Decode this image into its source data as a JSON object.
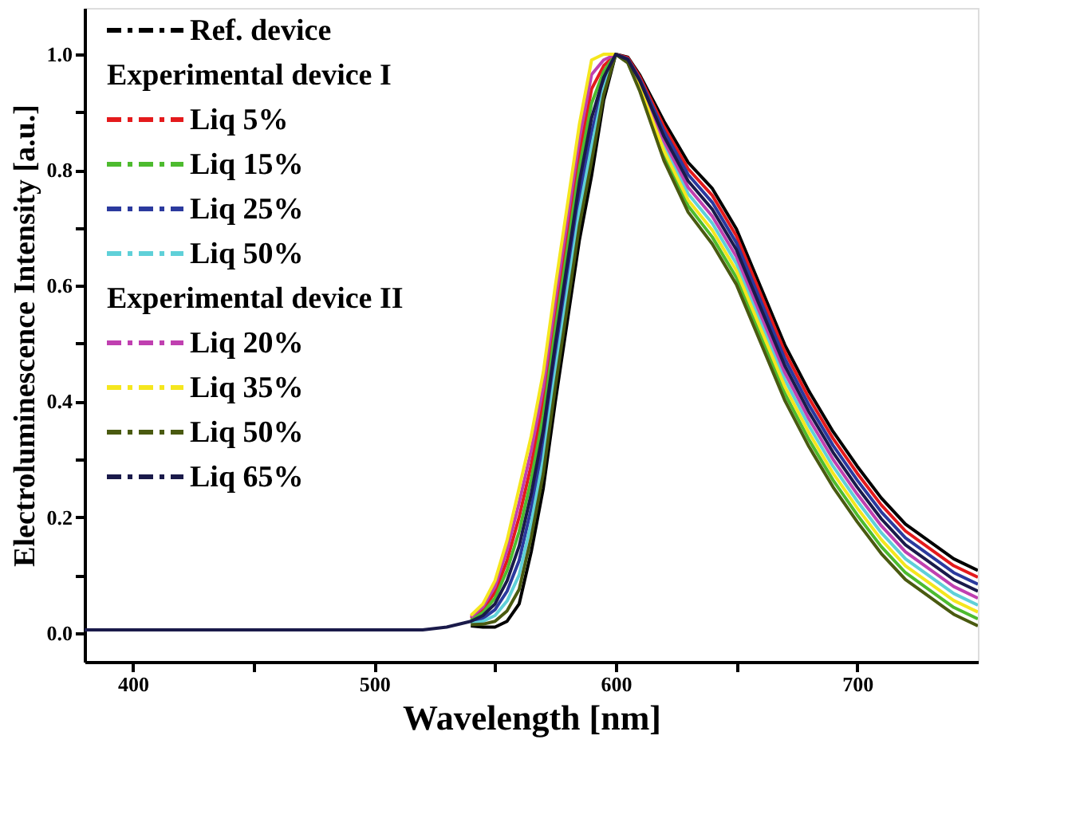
{
  "chart_data": {
    "type": "line",
    "xlabel": "Wavelength [nm]",
    "ylabel": "Electroluminescence Intensity [a.u.]",
    "x": [
      380,
      400,
      450,
      500,
      520,
      530,
      540,
      545,
      550,
      555,
      560,
      565,
      570,
      575,
      580,
      585,
      590,
      595,
      600,
      605,
      610,
      615,
      620,
      630,
      640,
      650,
      660,
      670,
      680,
      690,
      700,
      710,
      720,
      730,
      740,
      750
    ],
    "series": [
      {
        "name": "Ref. device",
        "color": "#000000",
        "values": [
          null,
          null,
          null,
          null,
          null,
          null,
          0.012,
          0.01,
          0.01,
          0.02,
          0.05,
          0.14,
          0.25,
          0.4,
          0.54,
          0.68,
          0.79,
          0.92,
          1.0,
          0.995,
          0.964,
          0.924,
          0.884,
          0.813,
          0.768,
          0.698,
          0.598,
          0.498,
          0.418,
          0.348,
          0.288,
          0.233,
          0.188,
          0.158,
          0.128,
          0.108
        ]
      },
      {
        "name": "Liq 5%",
        "color": "#e41a1c",
        "values": [
          null,
          null,
          null,
          null,
          null,
          null,
          0.025,
          0.04,
          0.07,
          0.125,
          0.2,
          0.29,
          0.4,
          0.55,
          0.69,
          0.83,
          0.94,
          0.98,
          1.0,
          0.994,
          0.961,
          0.918,
          0.875,
          0.802,
          0.756,
          0.686,
          0.586,
          0.486,
          0.406,
          0.336,
          0.276,
          0.221,
          0.176,
          0.146,
          0.116,
          0.096
        ]
      },
      {
        "name": "Liq 15%",
        "color": "#4dbb2f",
        "values": [
          null,
          null,
          null,
          null,
          null,
          null,
          0.022,
          0.035,
          0.06,
          0.108,
          0.175,
          0.265,
          0.375,
          0.525,
          0.665,
          0.805,
          0.915,
          0.97,
          1.0,
          0.986,
          0.939,
          0.882,
          0.825,
          0.738,
          0.684,
          0.614,
          0.514,
          0.414,
          0.334,
          0.264,
          0.204,
          0.149,
          0.104,
          0.074,
          0.044,
          0.024
        ]
      },
      {
        "name": "Liq 25%",
        "color": "#2b3a9e",
        "values": [
          null,
          null,
          null,
          null,
          null,
          null,
          0.018,
          0.025,
          0.04,
          0.072,
          0.125,
          0.215,
          0.325,
          0.475,
          0.615,
          0.755,
          0.865,
          0.95,
          1.0,
          0.992,
          0.957,
          0.912,
          0.867,
          0.792,
          0.744,
          0.674,
          0.574,
          0.474,
          0.394,
          0.324,
          0.264,
          0.209,
          0.164,
          0.134,
          0.104,
          0.084
        ]
      },
      {
        "name": "Liq 50%",
        "color": "#5fd0d8",
        "values": [
          null,
          null,
          null,
          null,
          null,
          null,
          0.016,
          0.02,
          0.03,
          0.055,
          0.1,
          0.19,
          0.3,
          0.45,
          0.59,
          0.73,
          0.84,
          0.94,
          1.0,
          0.989,
          0.946,
          0.894,
          0.842,
          0.759,
          0.708,
          0.638,
          0.538,
          0.438,
          0.358,
          0.288,
          0.228,
          0.173,
          0.128,
          0.098,
          0.068,
          0.048
        ]
      },
      {
        "name": "Liq 20%",
        "color": "#c040b0",
        "values": [
          null,
          null,
          null,
          null,
          null,
          null,
          0.027,
          0.045,
          0.08,
          0.143,
          0.225,
          0.315,
          0.425,
          0.575,
          0.715,
          0.855,
          0.965,
          0.99,
          1.0,
          0.99,
          0.95,
          0.9,
          0.85,
          0.77,
          0.72,
          0.65,
          0.55,
          0.45,
          0.37,
          0.3,
          0.24,
          0.185,
          0.14,
          0.11,
          0.08,
          0.06
        ]
      },
      {
        "name": "Liq 35%",
        "color": "#f5e61e",
        "values": [
          null,
          null,
          null,
          null,
          null,
          null,
          0.03,
          0.05,
          0.09,
          0.16,
          0.25,
          0.34,
          0.45,
          0.6,
          0.74,
          0.88,
          0.99,
          1.0,
          1.0,
          0.988,
          0.943,
          0.888,
          0.833,
          0.748,
          0.696,
          0.626,
          0.526,
          0.426,
          0.346,
          0.276,
          0.216,
          0.161,
          0.116,
          0.086,
          0.056,
          0.036
        ]
      },
      {
        "name": "Liq 50%",
        "color": "#4a5a10",
        "values": [
          null,
          null,
          null,
          null,
          null,
          null,
          0.014,
          0.015,
          0.02,
          0.038,
          0.075,
          0.165,
          0.275,
          0.425,
          0.565,
          0.705,
          0.815,
          0.93,
          1.0,
          0.985,
          0.936,
          0.876,
          0.816,
          0.727,
          0.672,
          0.602,
          0.502,
          0.402,
          0.322,
          0.252,
          0.192,
          0.137,
          0.092,
          0.062,
          0.032,
          0.012
        ]
      },
      {
        "name": "Liq 65%",
        "color": "#1a1a4a",
        "values": [
          0.005,
          0.005,
          0.005,
          0.005,
          0.005,
          0.01,
          0.02,
          0.03,
          0.05,
          0.09,
          0.15,
          0.24,
          0.35,
          0.5,
          0.64,
          0.78,
          0.89,
          0.96,
          1.0,
          0.991,
          0.954,
          0.906,
          0.858,
          0.781,
          0.732,
          0.662,
          0.562,
          0.462,
          0.382,
          0.312,
          0.252,
          0.197,
          0.152,
          0.122,
          0.092,
          0.072
        ]
      }
    ],
    "annotations": [
      "Experimental device I",
      "Experimental device II"
    ],
    "xlim": [
      380,
      750
    ],
    "xticks": [
      400,
      {
        "value": 450,
        "label": null
      },
      500,
      {
        "value": 550,
        "label": null
      },
      600,
      {
        "value": 650,
        "label": null
      },
      700
    ],
    "ylim": [
      -0.05,
      1.08
    ],
    "yticks": [
      {
        "value": 0,
        "label": "0.0"
      },
      {
        "value": 0.1,
        "label": null
      },
      {
        "value": 0.2,
        "label": "0.2"
      },
      {
        "value": 0.3,
        "label": null
      },
      {
        "value": 0.4,
        "label": "0.4"
      },
      {
        "value": 0.5,
        "label": null
      },
      {
        "value": 0.6,
        "label": "0.6"
      },
      {
        "value": 0.7,
        "label": null
      },
      {
        "value": 0.8,
        "label": "0.8"
      },
      {
        "value": 0.9,
        "label": null
      },
      {
        "value": 1.0,
        "label": "1.0"
      }
    ],
    "grid": false,
    "legend": "top left",
    "marker": "none"
  }
}
